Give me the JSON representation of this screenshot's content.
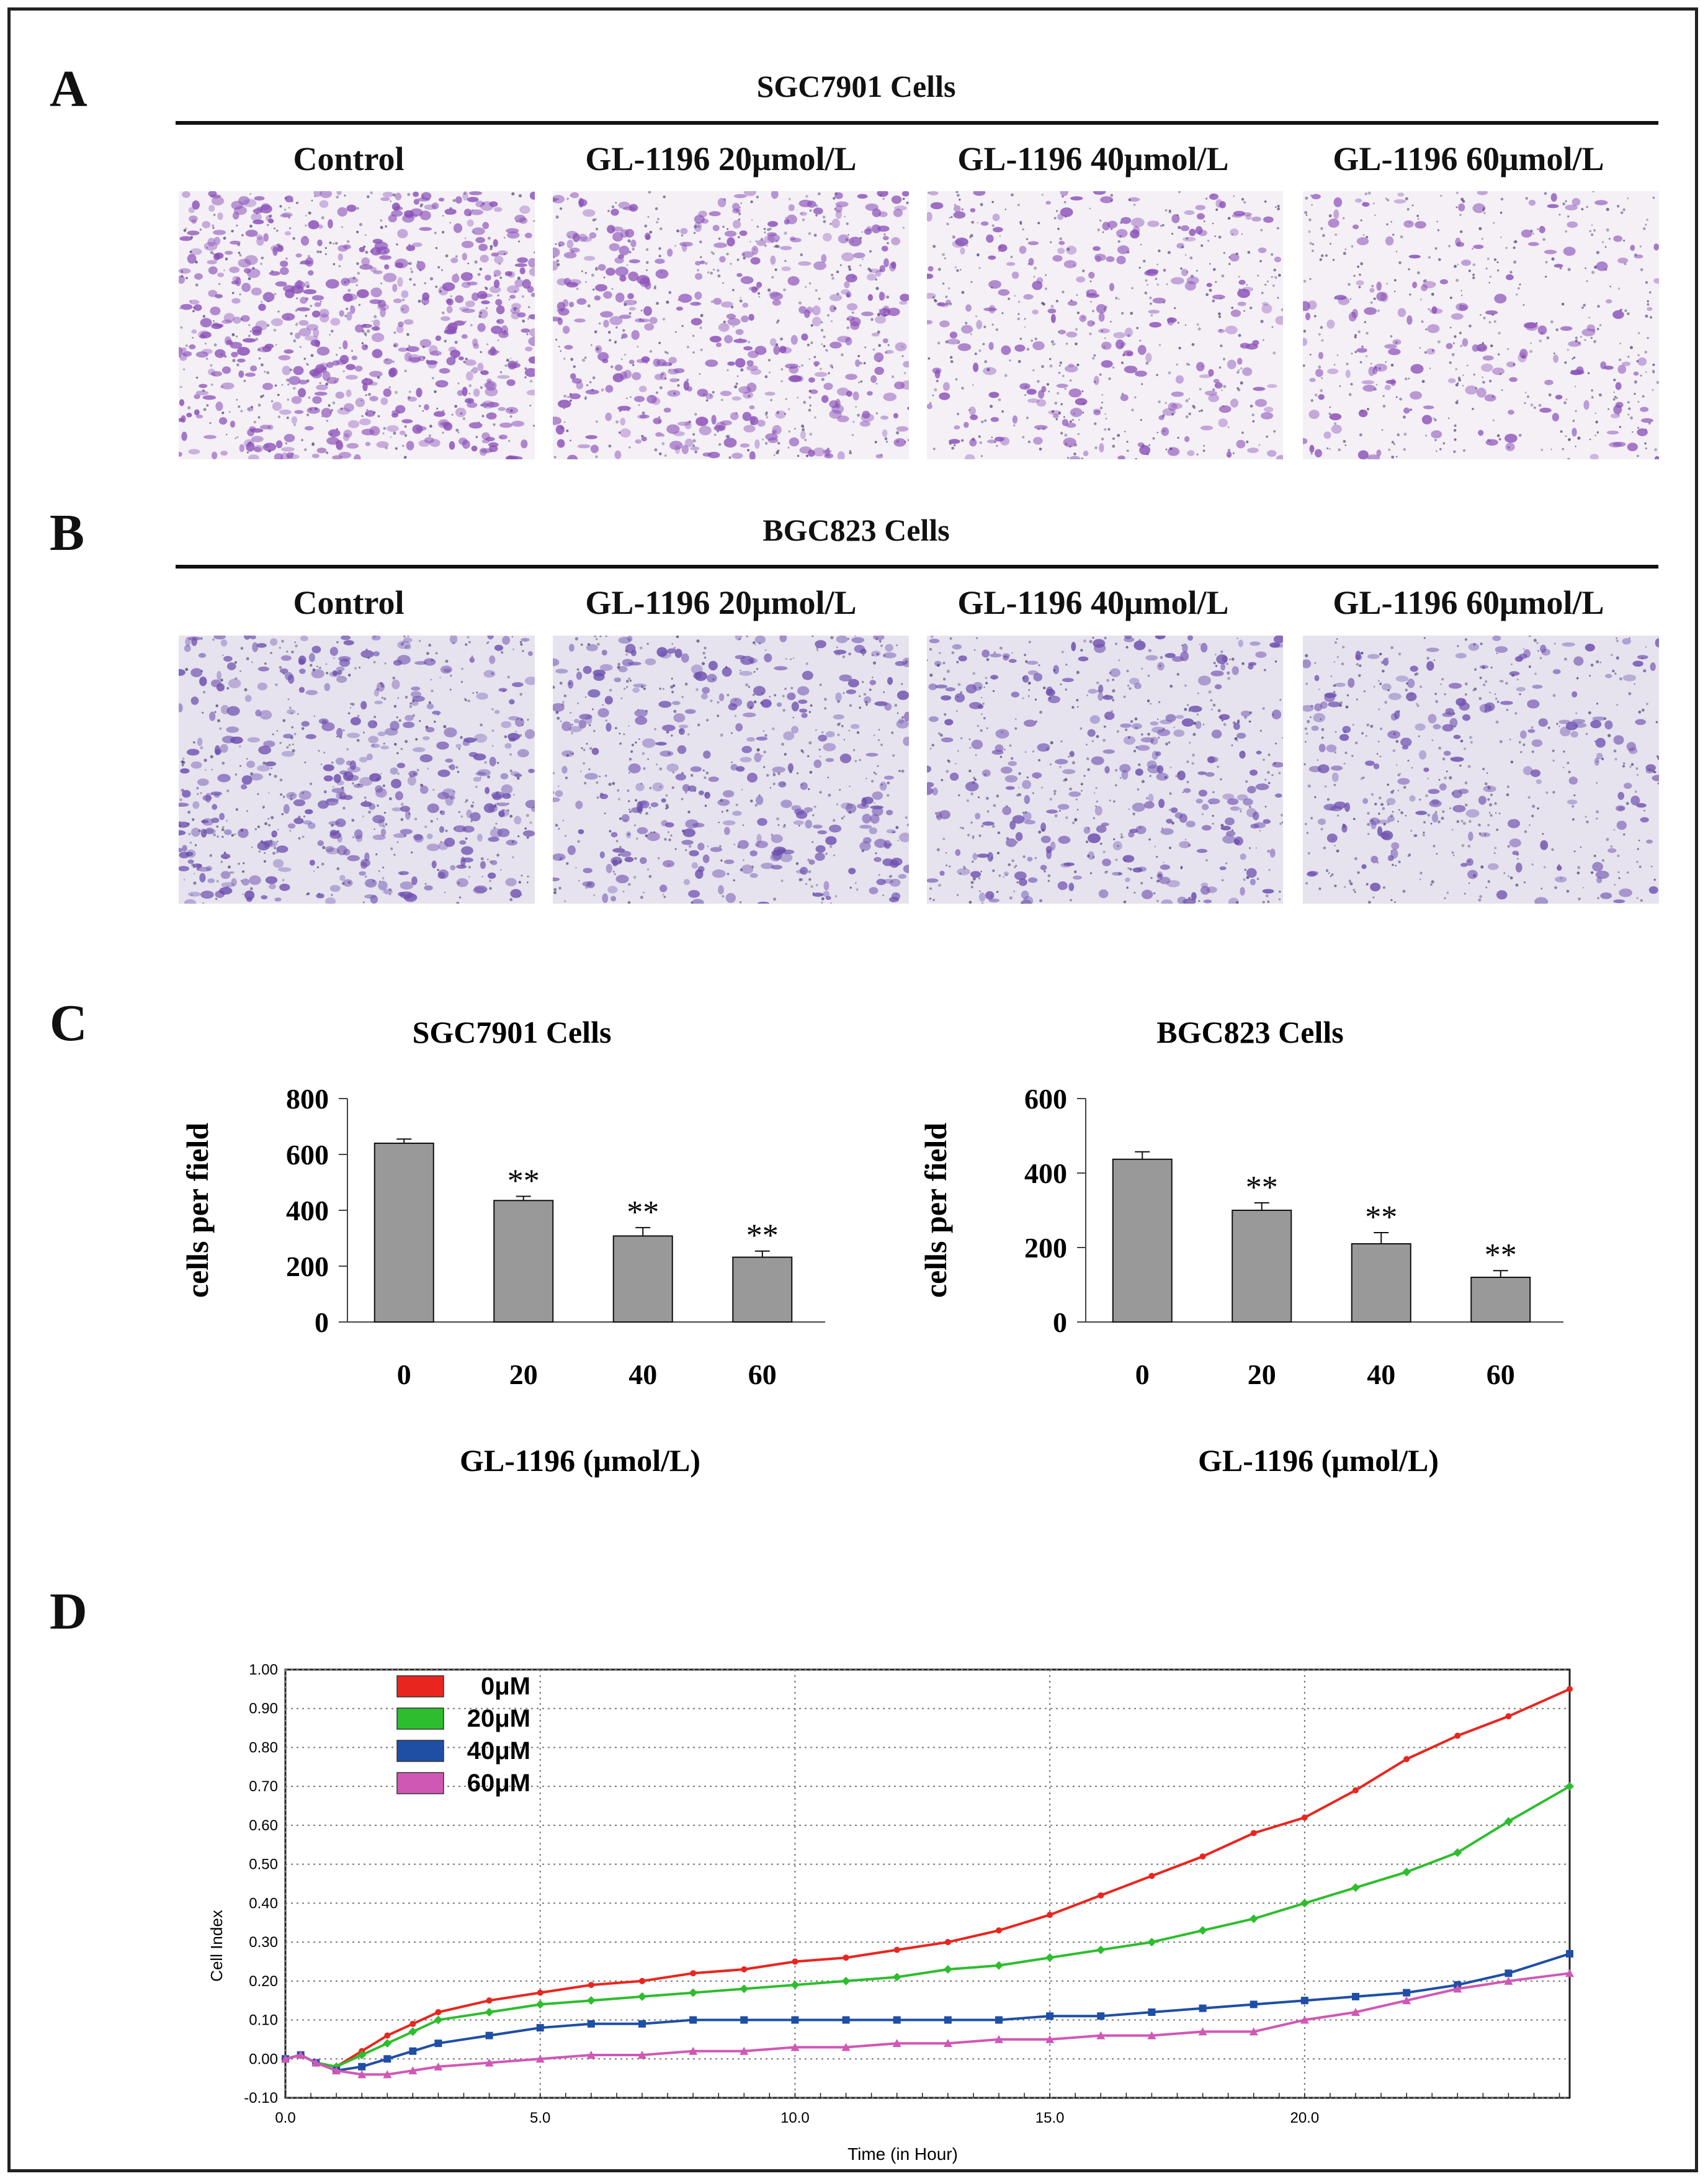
{
  "panels": {
    "A": {
      "letter": "A",
      "title": "SGC7901 Cells",
      "columns": [
        "Control",
        "GL-1196  20μmol/L",
        "GL-1196  40μmol/L",
        "GL-1196  60μmol/L"
      ],
      "image_density": [
        1.0,
        0.72,
        0.45,
        0.32
      ],
      "image_tint": "#f4f0f6",
      "cell_color": "#8a4fb8"
    },
    "B": {
      "letter": "B",
      "title": "BGC823 Cells",
      "columns": [
        "Control",
        "GL-1196  20μmol/L",
        "GL-1196  40μmol/L",
        "GL-1196  60μmol/L"
      ],
      "image_density": [
        0.7,
        0.55,
        0.5,
        0.35
      ],
      "image_tint": "#e6e3ef",
      "cell_color": "#6d4fae"
    },
    "C": {
      "letter": "C"
    },
    "D": {
      "letter": "D"
    }
  },
  "chart_data": [
    {
      "type": "bar",
      "title": "SGC7901 Cells",
      "xlabel": "GL-1196  (μmol/L)",
      "ylabel": "cells  per  field",
      "categories": [
        "0",
        "20",
        "40",
        "60"
      ],
      "values": [
        640,
        435,
        308,
        232
      ],
      "errors": [
        15,
        15,
        30,
        22
      ],
      "significance": [
        "",
        "**",
        "**",
        "**"
      ],
      "ylim": [
        0,
        800
      ],
      "yticks": [
        0,
        200,
        400,
        600,
        800
      ],
      "bar_color": "#999999"
    },
    {
      "type": "bar",
      "title": "BGC823 Cells",
      "xlabel": "GL-1196  (μmol/L)",
      "ylabel": "cells  per  field",
      "categories": [
        "0",
        "20",
        "40",
        "60"
      ],
      "values": [
        437,
        300,
        210,
        120
      ],
      "errors": [
        20,
        20,
        30,
        18
      ],
      "significance": [
        "",
        "**",
        "**",
        "**"
      ],
      "ylim": [
        0,
        600
      ],
      "yticks": [
        0,
        200,
        400,
        600
      ],
      "bar_color": "#999999"
    },
    {
      "type": "line",
      "xlabel": "Time (in Hour)",
      "ylabel": "Cell Index",
      "xlim": [
        0,
        25.2
      ],
      "ylim": [
        -0.1,
        1.0
      ],
      "xticks": [
        "0.0",
        "5.0",
        "10.0",
        "15.0",
        "20.0"
      ],
      "xtick_values": [
        0,
        5,
        10,
        15,
        20
      ],
      "yticks": [
        "-0.10",
        "0.00",
        "0.10",
        "0.20",
        "0.30",
        "0.40",
        "0.50",
        "0.60",
        "0.70",
        "0.80",
        "0.90",
        "1.00"
      ],
      "ytick_values": [
        -0.1,
        0,
        0.1,
        0.2,
        0.3,
        0.4,
        0.5,
        0.6,
        0.7,
        0.8,
        0.9,
        1.0
      ],
      "grid": true,
      "legend_position": "top-left",
      "series": [
        {
          "name": "0μM",
          "color": "#e8261f",
          "marker": "circle",
          "x": [
            0,
            0.3,
            0.6,
            1,
            1.5,
            2,
            2.5,
            3,
            4,
            5,
            6,
            7,
            8,
            9,
            10,
            11,
            12,
            13,
            14,
            15,
            16,
            17,
            18,
            19,
            20,
            21,
            22,
            23,
            24,
            25.2
          ],
          "y": [
            0,
            0.01,
            -0.01,
            -0.02,
            0.02,
            0.06,
            0.09,
            0.12,
            0.15,
            0.17,
            0.19,
            0.2,
            0.22,
            0.23,
            0.25,
            0.26,
            0.28,
            0.3,
            0.33,
            0.37,
            0.42,
            0.47,
            0.52,
            0.58,
            0.62,
            0.69,
            0.77,
            0.83,
            0.88,
            0.95
          ]
        },
        {
          "name": "20μM",
          "color": "#2ebd2e",
          "marker": "diamond",
          "x": [
            0,
            0.3,
            0.6,
            1,
            1.5,
            2,
            2.5,
            3,
            4,
            5,
            6,
            7,
            8,
            9,
            10,
            11,
            12,
            13,
            14,
            15,
            16,
            17,
            18,
            19,
            20,
            21,
            22,
            23,
            24,
            25.2
          ],
          "y": [
            0,
            0.01,
            -0.01,
            -0.02,
            0.01,
            0.04,
            0.07,
            0.1,
            0.12,
            0.14,
            0.15,
            0.16,
            0.17,
            0.18,
            0.19,
            0.2,
            0.21,
            0.23,
            0.24,
            0.26,
            0.28,
            0.3,
            0.33,
            0.36,
            0.4,
            0.44,
            0.48,
            0.53,
            0.61,
            0.7
          ]
        },
        {
          "name": "40μM",
          "color": "#1f4fa5",
          "marker": "square",
          "x": [
            0,
            0.3,
            0.6,
            1,
            1.5,
            2,
            2.5,
            3,
            4,
            5,
            6,
            7,
            8,
            9,
            10,
            11,
            12,
            13,
            14,
            15,
            16,
            17,
            18,
            19,
            20,
            21,
            22,
            23,
            24,
            25.2
          ],
          "y": [
            0,
            0.01,
            -0.01,
            -0.03,
            -0.02,
            0.0,
            0.02,
            0.04,
            0.06,
            0.08,
            0.09,
            0.09,
            0.1,
            0.1,
            0.1,
            0.1,
            0.1,
            0.1,
            0.1,
            0.11,
            0.11,
            0.12,
            0.13,
            0.14,
            0.15,
            0.16,
            0.17,
            0.19,
            0.22,
            0.27
          ]
        },
        {
          "name": "60μM",
          "color": "#d058b5",
          "marker": "triangle",
          "x": [
            0,
            0.3,
            0.6,
            1,
            1.5,
            2,
            2.5,
            3,
            4,
            5,
            6,
            7,
            8,
            9,
            10,
            11,
            12,
            13,
            14,
            15,
            16,
            17,
            18,
            19,
            20,
            21,
            22,
            23,
            24,
            25.2
          ],
          "y": [
            0,
            0.01,
            -0.01,
            -0.03,
            -0.04,
            -0.04,
            -0.03,
            -0.02,
            -0.01,
            0.0,
            0.01,
            0.01,
            0.02,
            0.02,
            0.03,
            0.03,
            0.04,
            0.04,
            0.05,
            0.05,
            0.06,
            0.06,
            0.07,
            0.07,
            0.1,
            0.12,
            0.15,
            0.18,
            0.2,
            0.22
          ]
        }
      ]
    }
  ]
}
